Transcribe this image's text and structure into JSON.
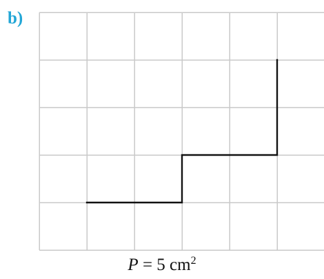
{
  "part_label": "b)",
  "caption": {
    "variable": "P",
    "relation": "= 5 cm",
    "exponent": "2"
  },
  "grid": {
    "columns": 6,
    "rows": 5
  },
  "drawn_path": {
    "vertices": [
      [
        1,
        1
      ],
      [
        3,
        1
      ],
      [
        3,
        2
      ],
      [
        5,
        2
      ],
      [
        5,
        4
      ]
    ]
  }
}
